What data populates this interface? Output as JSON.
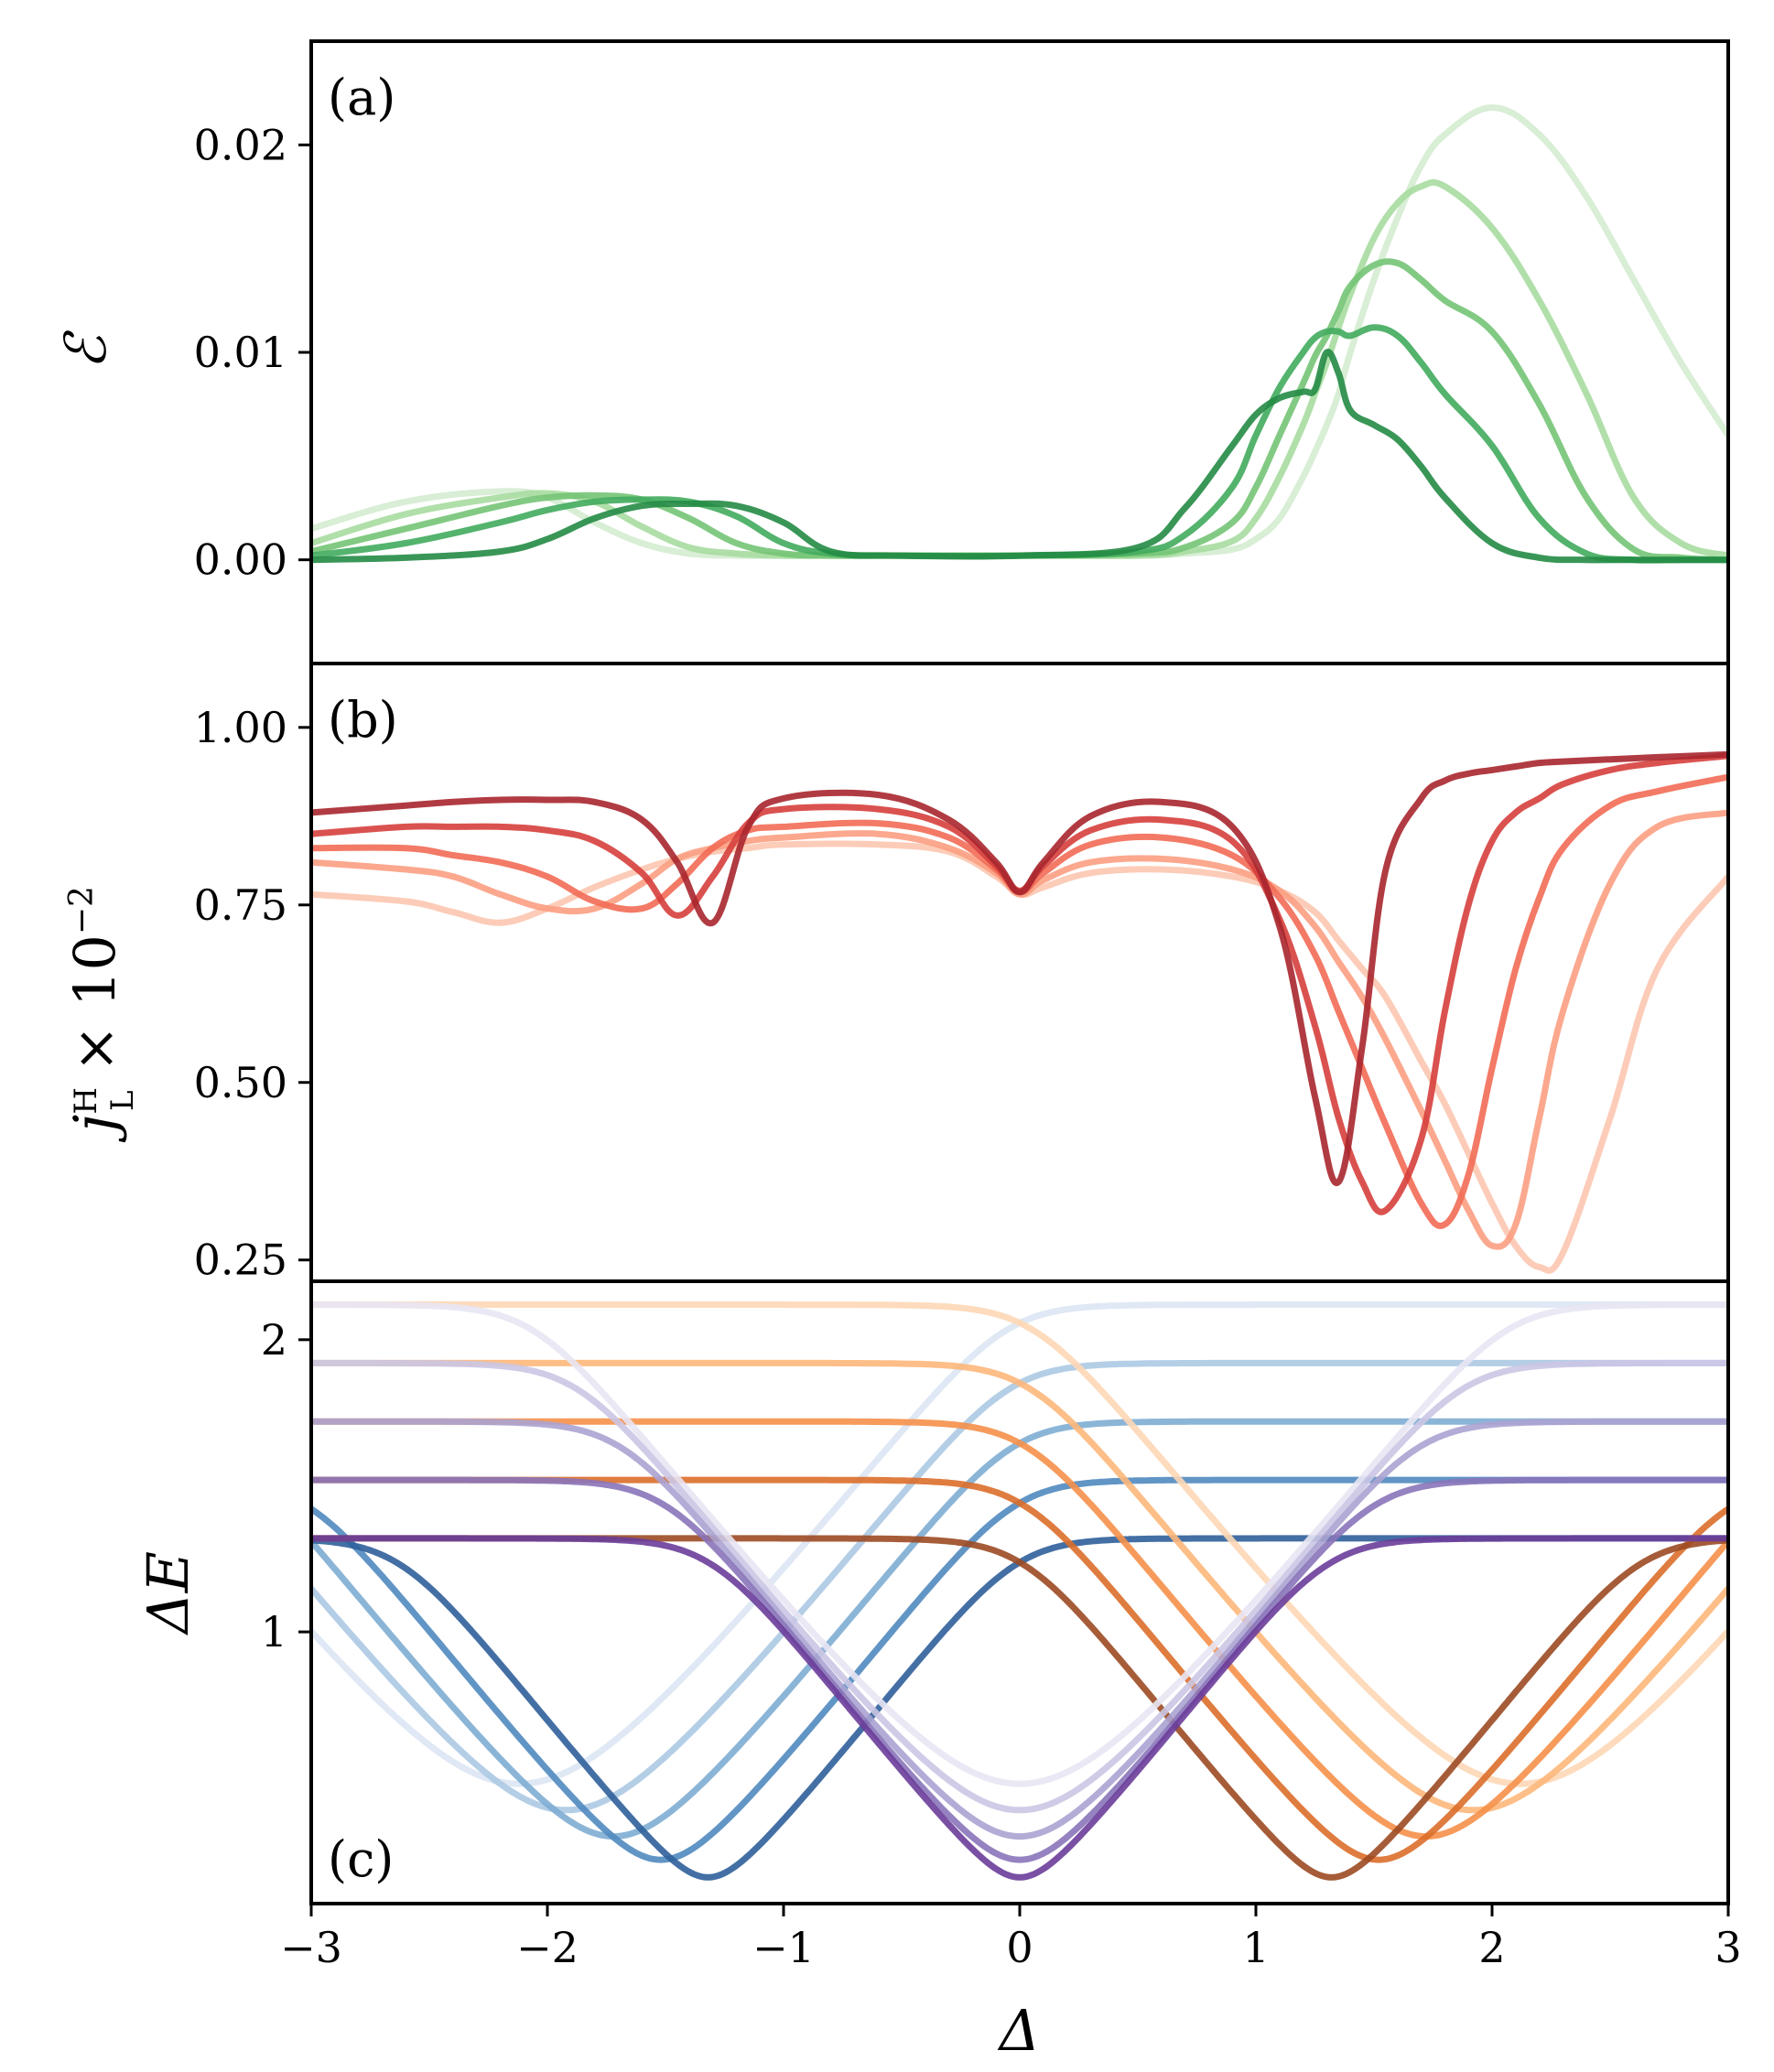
{
  "figure": {
    "x_axis": {
      "label": "Δ",
      "range": [
        -3,
        3
      ],
      "ticks": [
        -3,
        -2,
        -1,
        0,
        1,
        2,
        3
      ],
      "tick_labels": [
        "−3",
        "−2",
        "−1",
        "0",
        "1",
        "2",
        "3"
      ]
    }
  },
  "chart_data": [
    {
      "type": "line",
      "panel_label": "(a)",
      "ylabel": "ℰ",
      "xlim": [
        -3,
        3
      ],
      "ylim": [
        -0.005,
        0.025
      ],
      "yticks": [
        0.0,
        0.01,
        0.02
      ],
      "ytick_labels": [
        "0.00",
        "0.01",
        "0.02"
      ],
      "colors": [
        "#d4ecd0",
        "#a7dba0",
        "#74c476",
        "#41ab5d",
        "#238b45"
      ],
      "x": [
        -3,
        -2.6,
        -2.2,
        -2.0,
        -1.8,
        -1.6,
        -1.4,
        -1.2,
        -1.0,
        -0.8,
        -0.5,
        0,
        0.5,
        0.7,
        0.9,
        1.0,
        1.1,
        1.2,
        1.25,
        1.3,
        1.35,
        1.4,
        1.5,
        1.6,
        1.7,
        1.8,
        2.0,
        2.2,
        2.4,
        2.6,
        2.8,
        3.0
      ],
      "series": [
        {
          "name": "s1",
          "values": [
            0.0015,
            0.0028,
            0.0033,
            0.003,
            0.0018,
            0.0008,
            0.0003,
            0.0002,
            0.0002,
            0.0002,
            0.0002,
            0.0002,
            0.0002,
            0.0003,
            0.0005,
            0.001,
            0.002,
            0.004,
            0.0052,
            0.0065,
            0.008,
            0.01,
            0.0135,
            0.0165,
            0.019,
            0.0205,
            0.0218,
            0.0205,
            0.0175,
            0.0135,
            0.0095,
            0.006
          ]
        },
        {
          "name": "s2",
          "values": [
            0.0008,
            0.0022,
            0.003,
            0.0032,
            0.0028,
            0.0016,
            0.0006,
            0.0003,
            0.0002,
            0.0002,
            0.0002,
            0.0002,
            0.0002,
            0.0004,
            0.0009,
            0.002,
            0.004,
            0.0065,
            0.008,
            0.0095,
            0.0112,
            0.0128,
            0.0155,
            0.0172,
            0.018,
            0.018,
            0.016,
            0.0125,
            0.008,
            0.003,
            0.0008,
            0.0002
          ]
        },
        {
          "name": "s3",
          "values": [
            0.0004,
            0.0015,
            0.0026,
            0.003,
            0.0031,
            0.0029,
            0.002,
            0.0008,
            0.0003,
            0.0002,
            0.0002,
            0.0002,
            0.0003,
            0.0006,
            0.0018,
            0.0035,
            0.006,
            0.0085,
            0.0098,
            0.0108,
            0.012,
            0.0132,
            0.0142,
            0.0143,
            0.0135,
            0.0125,
            0.011,
            0.0075,
            0.003,
            0.0005,
            0.0001,
            0.0
          ]
        },
        {
          "name": "s4",
          "values": [
            0.0002,
            0.0008,
            0.0018,
            0.0024,
            0.0028,
            0.0029,
            0.0028,
            0.0021,
            0.0008,
            0.0003,
            0.0002,
            0.0002,
            0.0004,
            0.0012,
            0.0035,
            0.006,
            0.0083,
            0.01,
            0.0107,
            0.011,
            0.011,
            0.0108,
            0.0112,
            0.0108,
            0.0095,
            0.008,
            0.0055,
            0.002,
            0.0003,
            0.0,
            0.0,
            0.0
          ]
        },
        {
          "name": "s5",
          "values": [
            0.0,
            0.0001,
            0.0004,
            0.001,
            0.002,
            0.0026,
            0.0027,
            0.0026,
            0.0018,
            0.0004,
            0.0002,
            0.0002,
            0.0006,
            0.0025,
            0.0055,
            0.007,
            0.0078,
            0.0081,
            0.0082,
            0.01,
            0.009,
            0.0072,
            0.0065,
            0.0058,
            0.0045,
            0.003,
            0.0008,
            0.0001,
            0.0,
            0.0,
            0.0,
            0.0
          ]
        }
      ]
    },
    {
      "type": "line",
      "panel_label": "(b)",
      "ylabel": "j_L^H × 10^−2",
      "ylabel_parts": {
        "base": "j",
        "sup": "H",
        "sub": "L",
        "rest": " × 10",
        "exp": "−2"
      },
      "xlim": [
        -3,
        3
      ],
      "ylim": [
        0.22,
        1.09
      ],
      "yticks": [
        0.25,
        0.5,
        0.75,
        1.0
      ],
      "ytick_labels": [
        "0.25",
        "0.50",
        "0.75",
        "1.00"
      ],
      "colors": [
        "#fcc6b0",
        "#fb9e82",
        "#f26b55",
        "#d63f3c",
        "#a9262d"
      ],
      "x": [
        -3,
        -2.6,
        -2.4,
        -2.2,
        -2.0,
        -1.8,
        -1.6,
        -1.45,
        -1.3,
        -1.15,
        -1.0,
        -0.6,
        -0.3,
        -0.1,
        0,
        0.1,
        0.3,
        0.6,
        0.9,
        1.1,
        1.25,
        1.35,
        1.45,
        1.55,
        1.7,
        1.8,
        1.9,
        2.0,
        2.1,
        2.2,
        2.3,
        2.5,
        2.7,
        3.0
      ],
      "series": [
        {
          "name": "s1",
          "values": [
            0.765,
            0.755,
            0.74,
            0.725,
            0.745,
            0.775,
            0.8,
            0.815,
            0.825,
            0.83,
            0.835,
            0.835,
            0.825,
            0.79,
            0.765,
            0.775,
            0.795,
            0.8,
            0.79,
            0.77,
            0.74,
            0.7,
            0.66,
            0.62,
            0.53,
            0.47,
            0.4,
            0.33,
            0.27,
            0.24,
            0.26,
            0.45,
            0.66,
            0.79
          ]
        },
        {
          "name": "s2",
          "values": [
            0.81,
            0.8,
            0.79,
            0.765,
            0.745,
            0.745,
            0.78,
            0.815,
            0.83,
            0.84,
            0.845,
            0.85,
            0.83,
            0.795,
            0.765,
            0.785,
            0.81,
            0.815,
            0.8,
            0.77,
            0.72,
            0.67,
            0.62,
            0.56,
            0.46,
            0.39,
            0.32,
            0.27,
            0.3,
            0.45,
            0.6,
            0.78,
            0.86,
            0.88
          ]
        },
        {
          "name": "s3",
          "values": [
            0.83,
            0.83,
            0.82,
            0.81,
            0.79,
            0.755,
            0.745,
            0.78,
            0.83,
            0.855,
            0.86,
            0.865,
            0.845,
            0.8,
            0.768,
            0.795,
            0.835,
            0.845,
            0.82,
            0.76,
            0.68,
            0.6,
            0.52,
            0.44,
            0.33,
            0.3,
            0.37,
            0.52,
            0.66,
            0.76,
            0.83,
            0.89,
            0.91,
            0.93
          ]
        },
        {
          "name": "s4",
          "values": [
            0.85,
            0.86,
            0.86,
            0.86,
            0.855,
            0.84,
            0.795,
            0.735,
            0.79,
            0.865,
            0.885,
            0.885,
            0.86,
            0.805,
            0.77,
            0.805,
            0.855,
            0.87,
            0.84,
            0.73,
            0.58,
            0.45,
            0.36,
            0.32,
            0.42,
            0.6,
            0.75,
            0.84,
            0.88,
            0.9,
            0.92,
            0.94,
            0.95,
            0.96
          ]
        },
        {
          "name": "s5",
          "values": [
            0.88,
            0.89,
            0.895,
            0.898,
            0.898,
            0.895,
            0.87,
            0.81,
            0.725,
            0.86,
            0.9,
            0.905,
            0.87,
            0.81,
            0.768,
            0.81,
            0.875,
            0.895,
            0.86,
            0.72,
            0.48,
            0.36,
            0.55,
            0.8,
            0.9,
            0.925,
            0.935,
            0.94,
            0.945,
            0.95,
            0.952,
            0.955,
            0.958,
            0.962
          ]
        }
      ]
    },
    {
      "type": "line",
      "panel_label": "(c)",
      "ylabel": "ΔE",
      "xlim": [
        -3,
        3
      ],
      "ylim": [
        0.07,
        2.2
      ],
      "yticks": [
        1,
        2
      ],
      "ytick_labels": [
        "1",
        "2"
      ],
      "E_values": [
        2.12,
        1.92,
        1.72,
        1.52,
        1.32
      ],
      "min_values": [
        0.48,
        0.39,
        0.3,
        0.22,
        0.16
      ],
      "blue_colors": [
        "#dbe6f3",
        "#acc9e3",
        "#7eadd3",
        "#5089bf",
        "#2f5f9a"
      ],
      "orange_colors": [
        "#fdd7b5",
        "#fdb77a",
        "#f5904a",
        "#db6e2a",
        "#9c4a22"
      ],
      "purple_colors": [
        "#e8e6f3",
        "#cbc7e4",
        "#aba3d2",
        "#8a74b9",
        "#6a3d9a"
      ],
      "note": "Blue: left-side V-valleys centered at −E then plateau E to right; Orange: plateau E on left, V-valley at +E; Purple: V-shape from ±E with minimum at Δ=0."
    }
  ]
}
